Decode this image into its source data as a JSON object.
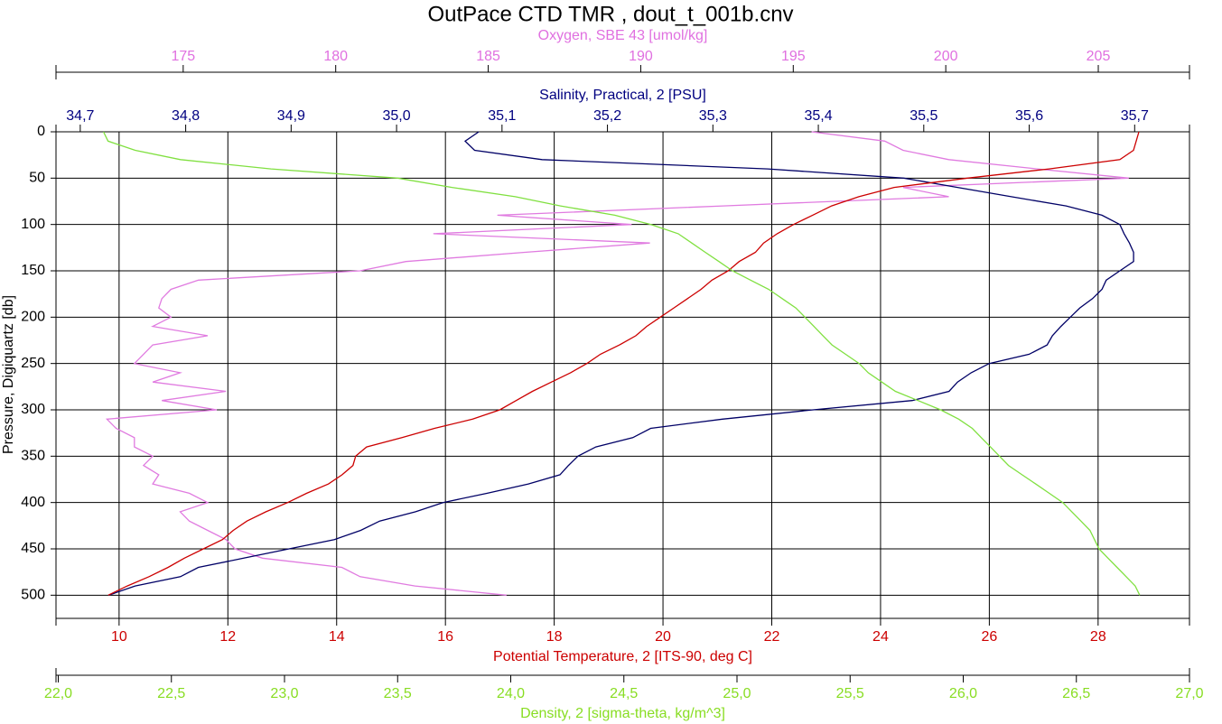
{
  "chart_data": {
    "type": "line",
    "title": "OutPace CTD TMR , dout_t_001b.cnv",
    "y_label": "Pressure, Digiquartz [db]",
    "y_inverted": true,
    "ylim": [
      0,
      525
    ],
    "yticks": [
      0,
      50,
      100,
      150,
      200,
      250,
      300,
      350,
      400,
      450,
      500
    ],
    "y": [
      0,
      10,
      20,
      30,
      40,
      50,
      60,
      70,
      80,
      90,
      100,
      110,
      120,
      130,
      140,
      150,
      160,
      170,
      180,
      190,
      200,
      210,
      220,
      230,
      240,
      250,
      260,
      270,
      280,
      290,
      300,
      310,
      320,
      330,
      340,
      350,
      360,
      370,
      380,
      390,
      400,
      410,
      420,
      430,
      440,
      450,
      460,
      470,
      480,
      490,
      500
    ],
    "x_axes": [
      {
        "id": "x1",
        "position": "top",
        "label": "Oxygen, SBE 43 [umol/kg]",
        "color": "#e070e0",
        "lim": [
          170.83,
          207.99
        ],
        "ticks": [
          175,
          180,
          185,
          190,
          195,
          200,
          205
        ],
        "grid": false
      },
      {
        "id": "x2",
        "position": "top",
        "label": "Salinity, Practical, 2 [PSU]",
        "color": "#000080",
        "lim": [
          34.677,
          35.752
        ],
        "ticks": [
          {
            "value": 34.7,
            "label": "34,7"
          },
          {
            "value": 34.8,
            "label": "34,8"
          },
          {
            "value": 34.9,
            "label": "34,9"
          },
          {
            "value": 35.0,
            "label": "35,0"
          },
          {
            "value": 35.1,
            "label": "35,1"
          },
          {
            "value": 35.2,
            "label": "35,2"
          },
          {
            "value": 35.3,
            "label": "35,3"
          },
          {
            "value": 35.4,
            "label": "35,4"
          },
          {
            "value": 35.5,
            "label": "35,5"
          },
          {
            "value": 35.6,
            "label": "35,6"
          },
          {
            "value": 35.7,
            "label": "35,7"
          }
        ],
        "grid": false
      },
      {
        "id": "x3",
        "position": "bottom",
        "label": "Potential Temperature, 2 [ITS-90, deg C]",
        "color": "#cc0000",
        "lim": [
          8.84,
          29.68
        ],
        "ticks": [
          10,
          12,
          14,
          16,
          18,
          20,
          22,
          24,
          26,
          28
        ],
        "grid": true
      },
      {
        "id": "x4",
        "position": "bottom",
        "label": "Density, 2 [sigma-theta, kg/m^3]",
        "color": "#88dd22",
        "lim": [
          21.99,
          27.0
        ],
        "ticks": [
          {
            "value": 22.0,
            "label": "22,0"
          },
          {
            "value": 22.5,
            "label": "22,5"
          },
          {
            "value": 23.0,
            "label": "23,0"
          },
          {
            "value": 23.5,
            "label": "23,5"
          },
          {
            "value": 24.0,
            "label": "24,0"
          },
          {
            "value": 24.5,
            "label": "24,5"
          },
          {
            "value": 25.0,
            "label": "25,0"
          },
          {
            "value": 25.5,
            "label": "25,5"
          },
          {
            "value": 26.0,
            "label": "26,0"
          },
          {
            "value": 26.5,
            "label": "26,5"
          },
          {
            "value": 27.0,
            "label": "27,0"
          }
        ],
        "grid": false
      }
    ],
    "grid": true,
    "series": [
      {
        "axis": "x1",
        "color": "#e07be0",
        "values": [
          195.6,
          198.0,
          198.6,
          200.1,
          203.0,
          206.0,
          198.6,
          200.1,
          192.7,
          185.3,
          189.7,
          183.2,
          190.3,
          186.2,
          182.3,
          180.8,
          175.5,
          174.6,
          174.3,
          174.2,
          174.6,
          174.0,
          175.8,
          174.0,
          173.7,
          173.4,
          174.9,
          174.0,
          176.4,
          174.3,
          176.1,
          172.5,
          172.8,
          173.4,
          173.4,
          174.0,
          173.7,
          174.2,
          174.0,
          175.2,
          175.8,
          174.9,
          175.2,
          175.8,
          176.4,
          176.7,
          177.6,
          180.2,
          180.8,
          182.6,
          185.6
        ]
      },
      {
        "axis": "x2",
        "color": "#000066",
        "values": [
          35.078,
          35.065,
          35.074,
          35.138,
          35.352,
          35.481,
          35.532,
          35.583,
          35.635,
          35.669,
          35.686,
          35.69,
          35.695,
          35.699,
          35.699,
          35.686,
          35.673,
          35.669,
          35.66,
          35.648,
          35.639,
          35.63,
          35.622,
          35.617,
          35.6,
          35.562,
          35.545,
          35.532,
          35.524,
          35.489,
          35.395,
          35.309,
          35.241,
          35.224,
          35.189,
          35.172,
          35.163,
          35.155,
          35.125,
          35.086,
          35.044,
          35.018,
          34.984,
          34.966,
          34.941,
          34.898,
          34.855,
          34.812,
          34.795,
          34.752,
          34.727
        ]
      },
      {
        "axis": "x3",
        "color": "#cc0000",
        "values": [
          28.75,
          28.7,
          28.65,
          28.4,
          27.1,
          25.6,
          24.25,
          23.6,
          23.1,
          22.75,
          22.4,
          22.1,
          21.85,
          21.7,
          21.4,
          21.2,
          20.9,
          20.7,
          20.45,
          20.2,
          19.95,
          19.7,
          19.5,
          19.2,
          18.85,
          18.6,
          18.3,
          17.95,
          17.6,
          17.3,
          17.0,
          16.5,
          15.8,
          15.2,
          14.55,
          14.35,
          14.3,
          14.1,
          13.85,
          13.45,
          13.1,
          12.7,
          12.35,
          12.1,
          11.9,
          11.55,
          11.2,
          10.9,
          10.55,
          10.15,
          9.8
        ]
      },
      {
        "axis": "x4",
        "color": "#80e040",
        "values": [
          22.2,
          22.22,
          22.34,
          22.54,
          22.94,
          23.5,
          23.74,
          24.02,
          24.22,
          24.46,
          24.62,
          24.74,
          24.8,
          24.86,
          24.92,
          24.98,
          25.06,
          25.14,
          25.2,
          25.26,
          25.3,
          25.34,
          25.38,
          25.42,
          25.48,
          25.54,
          25.58,
          25.64,
          25.7,
          25.8,
          25.9,
          25.98,
          26.04,
          26.08,
          26.12,
          26.16,
          26.2,
          26.26,
          26.32,
          26.38,
          26.44,
          26.48,
          26.52,
          26.56,
          26.58,
          26.6,
          26.64,
          26.68,
          26.72,
          26.76,
          26.78
        ]
      }
    ]
  }
}
